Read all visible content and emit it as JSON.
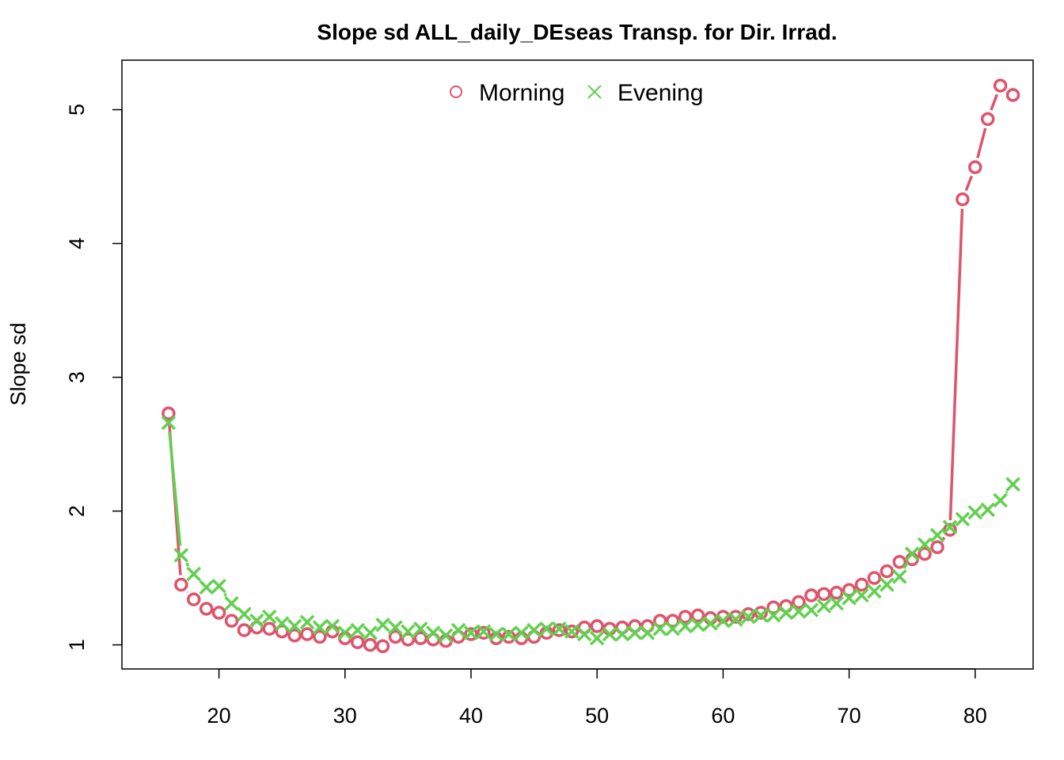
{
  "chart_data": {
    "type": "line",
    "title": "Slope sd ALL_daily_DEseas Transp. for Dir. Irrad.",
    "xlabel": "",
    "ylabel": "Slope sd",
    "xlim": [
      12.3,
      84.6
    ],
    "ylim": [
      0.82,
      5.37
    ],
    "x_ticks": [
      20,
      30,
      40,
      50,
      60,
      70,
      80
    ],
    "y_ticks": [
      1,
      2,
      3,
      4,
      5
    ],
    "grid": false,
    "legend": {
      "position": "top",
      "entries": [
        "Morning",
        "Evening"
      ]
    },
    "x": [
      16,
      17,
      18,
      19,
      20,
      21,
      22,
      23,
      24,
      25,
      26,
      27,
      28,
      29,
      30,
      31,
      32,
      33,
      34,
      35,
      36,
      37,
      38,
      39,
      40,
      41,
      42,
      43,
      44,
      45,
      46,
      47,
      48,
      49,
      50,
      51,
      52,
      53,
      54,
      55,
      56,
      57,
      58,
      59,
      60,
      61,
      62,
      63,
      64,
      65,
      66,
      67,
      68,
      69,
      70,
      71,
      72,
      73,
      74,
      75,
      76,
      77,
      78,
      79,
      80,
      81,
      82,
      83
    ],
    "series": [
      {
        "name": "Morning",
        "color": "#DF536B",
        "marker": "circle",
        "values": [
          2.73,
          1.45,
          1.34,
          1.27,
          1.24,
          1.18,
          1.11,
          1.13,
          1.12,
          1.1,
          1.07,
          1.08,
          1.06,
          1.1,
          1.05,
          1.02,
          1.0,
          0.99,
          1.06,
          1.04,
          1.05,
          1.04,
          1.03,
          1.06,
          1.08,
          1.09,
          1.05,
          1.06,
          1.05,
          1.06,
          1.09,
          1.11,
          1.1,
          1.13,
          1.14,
          1.12,
          1.13,
          1.14,
          1.14,
          1.18,
          1.18,
          1.21,
          1.22,
          1.2,
          1.21,
          1.21,
          1.23,
          1.24,
          1.28,
          1.29,
          1.32,
          1.37,
          1.38,
          1.39,
          1.41,
          1.45,
          1.5,
          1.55,
          1.62,
          1.64,
          1.68,
          1.73,
          1.86,
          4.33,
          4.57,
          4.93,
          5.18,
          5.11
        ]
      },
      {
        "name": "Evening",
        "color": "#61D04F",
        "marker": "x",
        "values": [
          2.66,
          1.67,
          1.53,
          1.43,
          1.44,
          1.31,
          1.23,
          1.18,
          1.21,
          1.16,
          1.14,
          1.17,
          1.13,
          1.14,
          1.09,
          1.11,
          1.09,
          1.15,
          1.13,
          1.1,
          1.12,
          1.09,
          1.07,
          1.11,
          1.09,
          1.1,
          1.08,
          1.08,
          1.09,
          1.11,
          1.12,
          1.12,
          1.1,
          1.08,
          1.05,
          1.08,
          1.08,
          1.09,
          1.09,
          1.12,
          1.12,
          1.14,
          1.15,
          1.16,
          1.18,
          1.19,
          1.21,
          1.22,
          1.22,
          1.24,
          1.25,
          1.26,
          1.29,
          1.31,
          1.35,
          1.37,
          1.4,
          1.45,
          1.51,
          1.68,
          1.75,
          1.82,
          1.88,
          1.94,
          1.99,
          2.01,
          2.08,
          2.2
        ]
      }
    ]
  }
}
